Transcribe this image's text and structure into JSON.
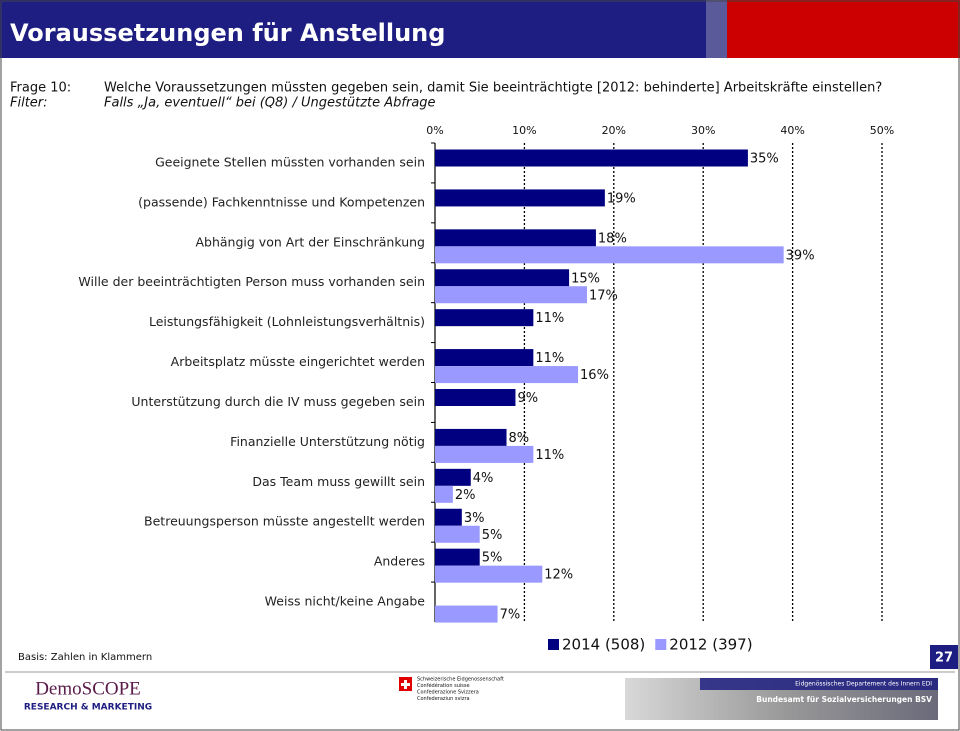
{
  "header": {
    "title": "Voraussetzungen für Anstellung"
  },
  "question": {
    "label": "Frage 10:",
    "text": "Welche Voraussetzungen müssten gegeben sein, damit Sie beeinträchtigte [2012: behinderte] Arbeitskräfte einstellen?"
  },
  "filter": {
    "label": "Filter:",
    "text": "Falls „Ja, eventuell“ bei (Q8) / Ungestützte Abfrage"
  },
  "chart_data": {
    "type": "bar",
    "orientation": "horizontal",
    "categories": [
      "Geeignete Stellen müssten vorhanden sein",
      "(passende) Fachkenntnisse und Kompetenzen",
      "Abhängig von Art der Einschränkung",
      "Wille der beeinträchtigten Person muss vorhanden sein",
      "Leistungsfähigkeit (Lohnleistungsverhältnis)",
      "Arbeitsplatz müsste eingerichtet werden",
      "Unterstützung durch die IV muss gegeben sein",
      "Finanzielle Unterstützung nötig",
      "Das Team muss gewillt sein",
      "Betreuungsperson müsste angestellt werden",
      "Anderes",
      "Weiss nicht/keine Angabe"
    ],
    "series": [
      {
        "name": "2014 (508)",
        "color": "#000080",
        "values": [
          35,
          19,
          18,
          15,
          11,
          11,
          9,
          8,
          4,
          3,
          5,
          null
        ],
        "value_labels": [
          "35%",
          "19%",
          "18%",
          "15%",
          "11%",
          "11%",
          "9%",
          "8%",
          "4%",
          "3%",
          "5%",
          null
        ]
      },
      {
        "name": "2012 (397)",
        "color": "#9999ff",
        "values": [
          null,
          null,
          39,
          17,
          null,
          16,
          null,
          11,
          2,
          5,
          12,
          7
        ],
        "value_labels": [
          null,
          null,
          "39%",
          "17%",
          null,
          "16%",
          null,
          "11%",
          "2%",
          "5%",
          "12%",
          "7%"
        ]
      }
    ],
    "xlim": [
      0,
      50
    ],
    "xticks": [
      {
        "value": 0,
        "label": "0%"
      },
      {
        "value": 10,
        "label": "10%"
      },
      {
        "value": 20,
        "label": "20%"
      },
      {
        "value": 30,
        "label": "30%"
      },
      {
        "value": 40,
        "label": "40%"
      },
      {
        "value": 50,
        "label": "50%"
      }
    ],
    "grid": true,
    "legend": "bottom-right"
  },
  "footer": {
    "note": "Basis: Zahlen in Klammern",
    "page_number": "27",
    "logo": {
      "name": "DemoSCOPE",
      "tagline": "RESEARCH & MARKETING"
    },
    "confederation": [
      "Schweizerische Eidgenossenschaft",
      "Confédération suisse",
      "Confederazione Svizzera",
      "Confederaziun svizra"
    ],
    "department": "Eidgenössisches Departement des Innern EDI",
    "office": "Bundesamt für Sozialversicherungen BSV"
  }
}
